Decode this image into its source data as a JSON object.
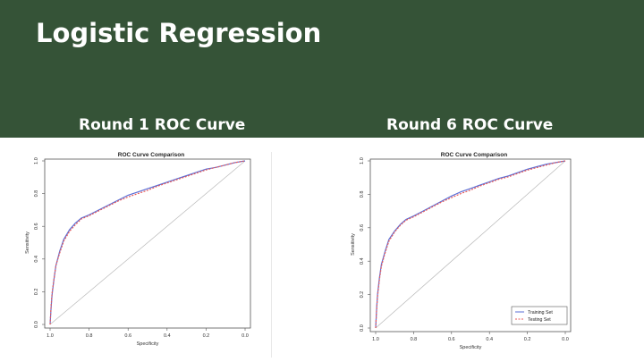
{
  "slide": {
    "title": "Logistic Regression",
    "left_heading": "Round 1 ROC Curve",
    "right_heading": "Round 6 ROC Curve",
    "colors": {
      "header_bg": "#355337",
      "training": "#5b6fd6",
      "testing": "#e85a5a",
      "diagonal": "#b8b8b8"
    }
  },
  "chart_data": [
    {
      "type": "line",
      "title": "ROC Curve Comparison",
      "xlabel": "Specificity",
      "ylabel": "Sensitivity",
      "xlim": [
        1.0,
        0.0
      ],
      "ylim": [
        0.0,
        1.0
      ],
      "xticks": [
        "1.0",
        "0.8",
        "0.6",
        "0.4",
        "0.2",
        "0.0"
      ],
      "yticks": [
        "0.0",
        "0.2",
        "0.4",
        "0.6",
        "0.8",
        "1.0"
      ],
      "legend": null,
      "series": [
        {
          "x": [
            1.0,
            0.995,
            0.99,
            0.98,
            0.97,
            0.95,
            0.93,
            0.9,
            0.87,
            0.84,
            0.8,
            0.75,
            0.7,
            0.65,
            0.6,
            0.55,
            0.5,
            0.45,
            0.4,
            0.35,
            0.3,
            0.25,
            0.2,
            0.15,
            0.1,
            0.05,
            0.0
          ],
          "y": [
            0.0,
            0.1,
            0.18,
            0.28,
            0.36,
            0.45,
            0.52,
            0.58,
            0.62,
            0.65,
            0.67,
            0.7,
            0.73,
            0.76,
            0.79,
            0.81,
            0.83,
            0.85,
            0.87,
            0.89,
            0.91,
            0.93,
            0.95,
            0.96,
            0.975,
            0.99,
            1.0
          ]
        },
        {
          "x": [
            1.0,
            0.995,
            0.99,
            0.98,
            0.97,
            0.95,
            0.93,
            0.9,
            0.87,
            0.84,
            0.8,
            0.75,
            0.7,
            0.65,
            0.6,
            0.55,
            0.5,
            0.45,
            0.4,
            0.35,
            0.3,
            0.25,
            0.2,
            0.15,
            0.1,
            0.05,
            0.0
          ],
          "y": [
            0.0,
            0.11,
            0.19,
            0.28,
            0.36,
            0.44,
            0.51,
            0.57,
            0.61,
            0.645,
            0.665,
            0.695,
            0.725,
            0.755,
            0.78,
            0.8,
            0.82,
            0.845,
            0.865,
            0.885,
            0.905,
            0.925,
            0.945,
            0.96,
            0.975,
            0.99,
            1.0
          ]
        }
      ]
    },
    {
      "type": "line",
      "title": "ROC Curve Comparison",
      "xlabel": "Specificity",
      "ylabel": "Sensitivity",
      "xlim": [
        1.0,
        0.0
      ],
      "ylim": [
        0.0,
        1.0
      ],
      "xticks": [
        "1.0",
        "0.8",
        "0.6",
        "0.4",
        "0.2",
        "0.0"
      ],
      "yticks": [
        "0.0",
        "0.2",
        "0.4",
        "0.6",
        "0.8",
        "1.0"
      ],
      "legend": "bottom-right",
      "series": [
        {
          "name": "Training Set",
          "x": [
            1.0,
            0.995,
            0.99,
            0.98,
            0.97,
            0.95,
            0.93,
            0.9,
            0.87,
            0.84,
            0.8,
            0.75,
            0.7,
            0.65,
            0.6,
            0.55,
            0.5,
            0.45,
            0.4,
            0.35,
            0.3,
            0.25,
            0.2,
            0.15,
            0.1,
            0.05,
            0.0
          ],
          "y": [
            0.0,
            0.12,
            0.2,
            0.3,
            0.38,
            0.46,
            0.53,
            0.58,
            0.62,
            0.65,
            0.67,
            0.7,
            0.73,
            0.76,
            0.79,
            0.815,
            0.835,
            0.855,
            0.875,
            0.895,
            0.91,
            0.93,
            0.95,
            0.965,
            0.98,
            0.99,
            1.0
          ]
        },
        {
          "name": "Testing Set",
          "x": [
            1.0,
            0.995,
            0.99,
            0.98,
            0.97,
            0.95,
            0.93,
            0.9,
            0.87,
            0.84,
            0.8,
            0.75,
            0.7,
            0.65,
            0.6,
            0.55,
            0.5,
            0.45,
            0.4,
            0.35,
            0.3,
            0.25,
            0.2,
            0.15,
            0.1,
            0.05,
            0.0
          ],
          "y": [
            0.0,
            0.11,
            0.19,
            0.29,
            0.37,
            0.45,
            0.52,
            0.575,
            0.615,
            0.645,
            0.665,
            0.695,
            0.725,
            0.755,
            0.78,
            0.805,
            0.825,
            0.85,
            0.87,
            0.89,
            0.905,
            0.925,
            0.945,
            0.96,
            0.975,
            0.99,
            1.0
          ]
        }
      ]
    }
  ]
}
